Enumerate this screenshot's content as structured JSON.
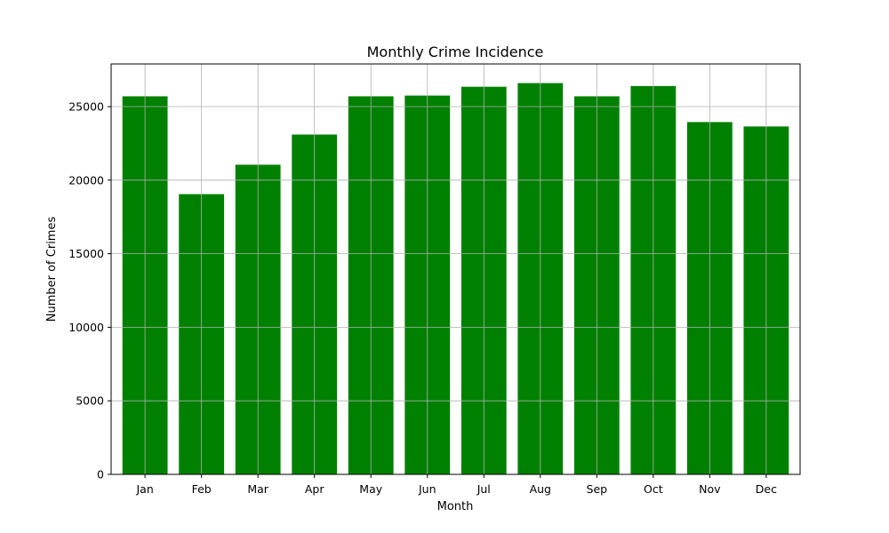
{
  "chart_data": {
    "type": "bar",
    "title": "Monthly Crime Incidence",
    "xlabel": "Month",
    "ylabel": "Number of Crimes",
    "categories": [
      "Jan",
      "Feb",
      "Mar",
      "Apr",
      "May",
      "Jun",
      "Jul",
      "Aug",
      "Sep",
      "Oct",
      "Nov",
      "Dec"
    ],
    "values": [
      25700,
      19050,
      21050,
      23100,
      25700,
      25750,
      26350,
      26600,
      25700,
      26400,
      23950,
      23650
    ],
    "ylim": [
      0,
      27900
    ],
    "yticks": [
      0,
      5000,
      10000,
      15000,
      20000,
      25000
    ],
    "grid": true,
    "bar_color": "#008000"
  }
}
